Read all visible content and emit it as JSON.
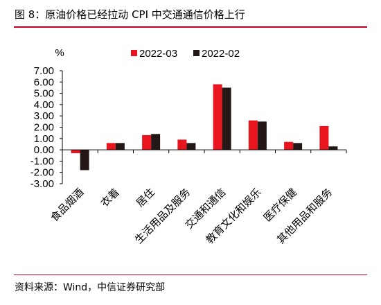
{
  "figure": {
    "title": "图 8：原油价格已经拉动 CPI 中交通通信价格上行",
    "source": "资料来源：Wind，中信证券研究部"
  },
  "colors": {
    "series1": "#e8141e",
    "series2": "#231815",
    "rule": "#c0002a"
  },
  "chart_data": {
    "type": "bar",
    "ylabel": "%",
    "ylim": [
      -3,
      7
    ],
    "yticks": [
      "7.00",
      "6.00",
      "5.00",
      "4.00",
      "3.00",
      "2.00",
      "1.00",
      "0.00",
      "-1.00",
      "-2.00",
      "-3.00"
    ],
    "grid": false,
    "legend": "top",
    "categories": [
      "食品烟酒",
      "衣着",
      "居住",
      "生活用品及服务",
      "交通和通信",
      "教育文化和娱乐",
      "医疗保健",
      "其他用品和服务"
    ],
    "series": [
      {
        "name": "2022-03",
        "values": [
          -0.3,
          0.6,
          1.3,
          0.9,
          5.8,
          2.6,
          0.7,
          2.1
        ]
      },
      {
        "name": "2022-02",
        "values": [
          -1.8,
          0.6,
          1.4,
          0.6,
          5.5,
          2.5,
          0.6,
          0.3
        ]
      }
    ]
  }
}
